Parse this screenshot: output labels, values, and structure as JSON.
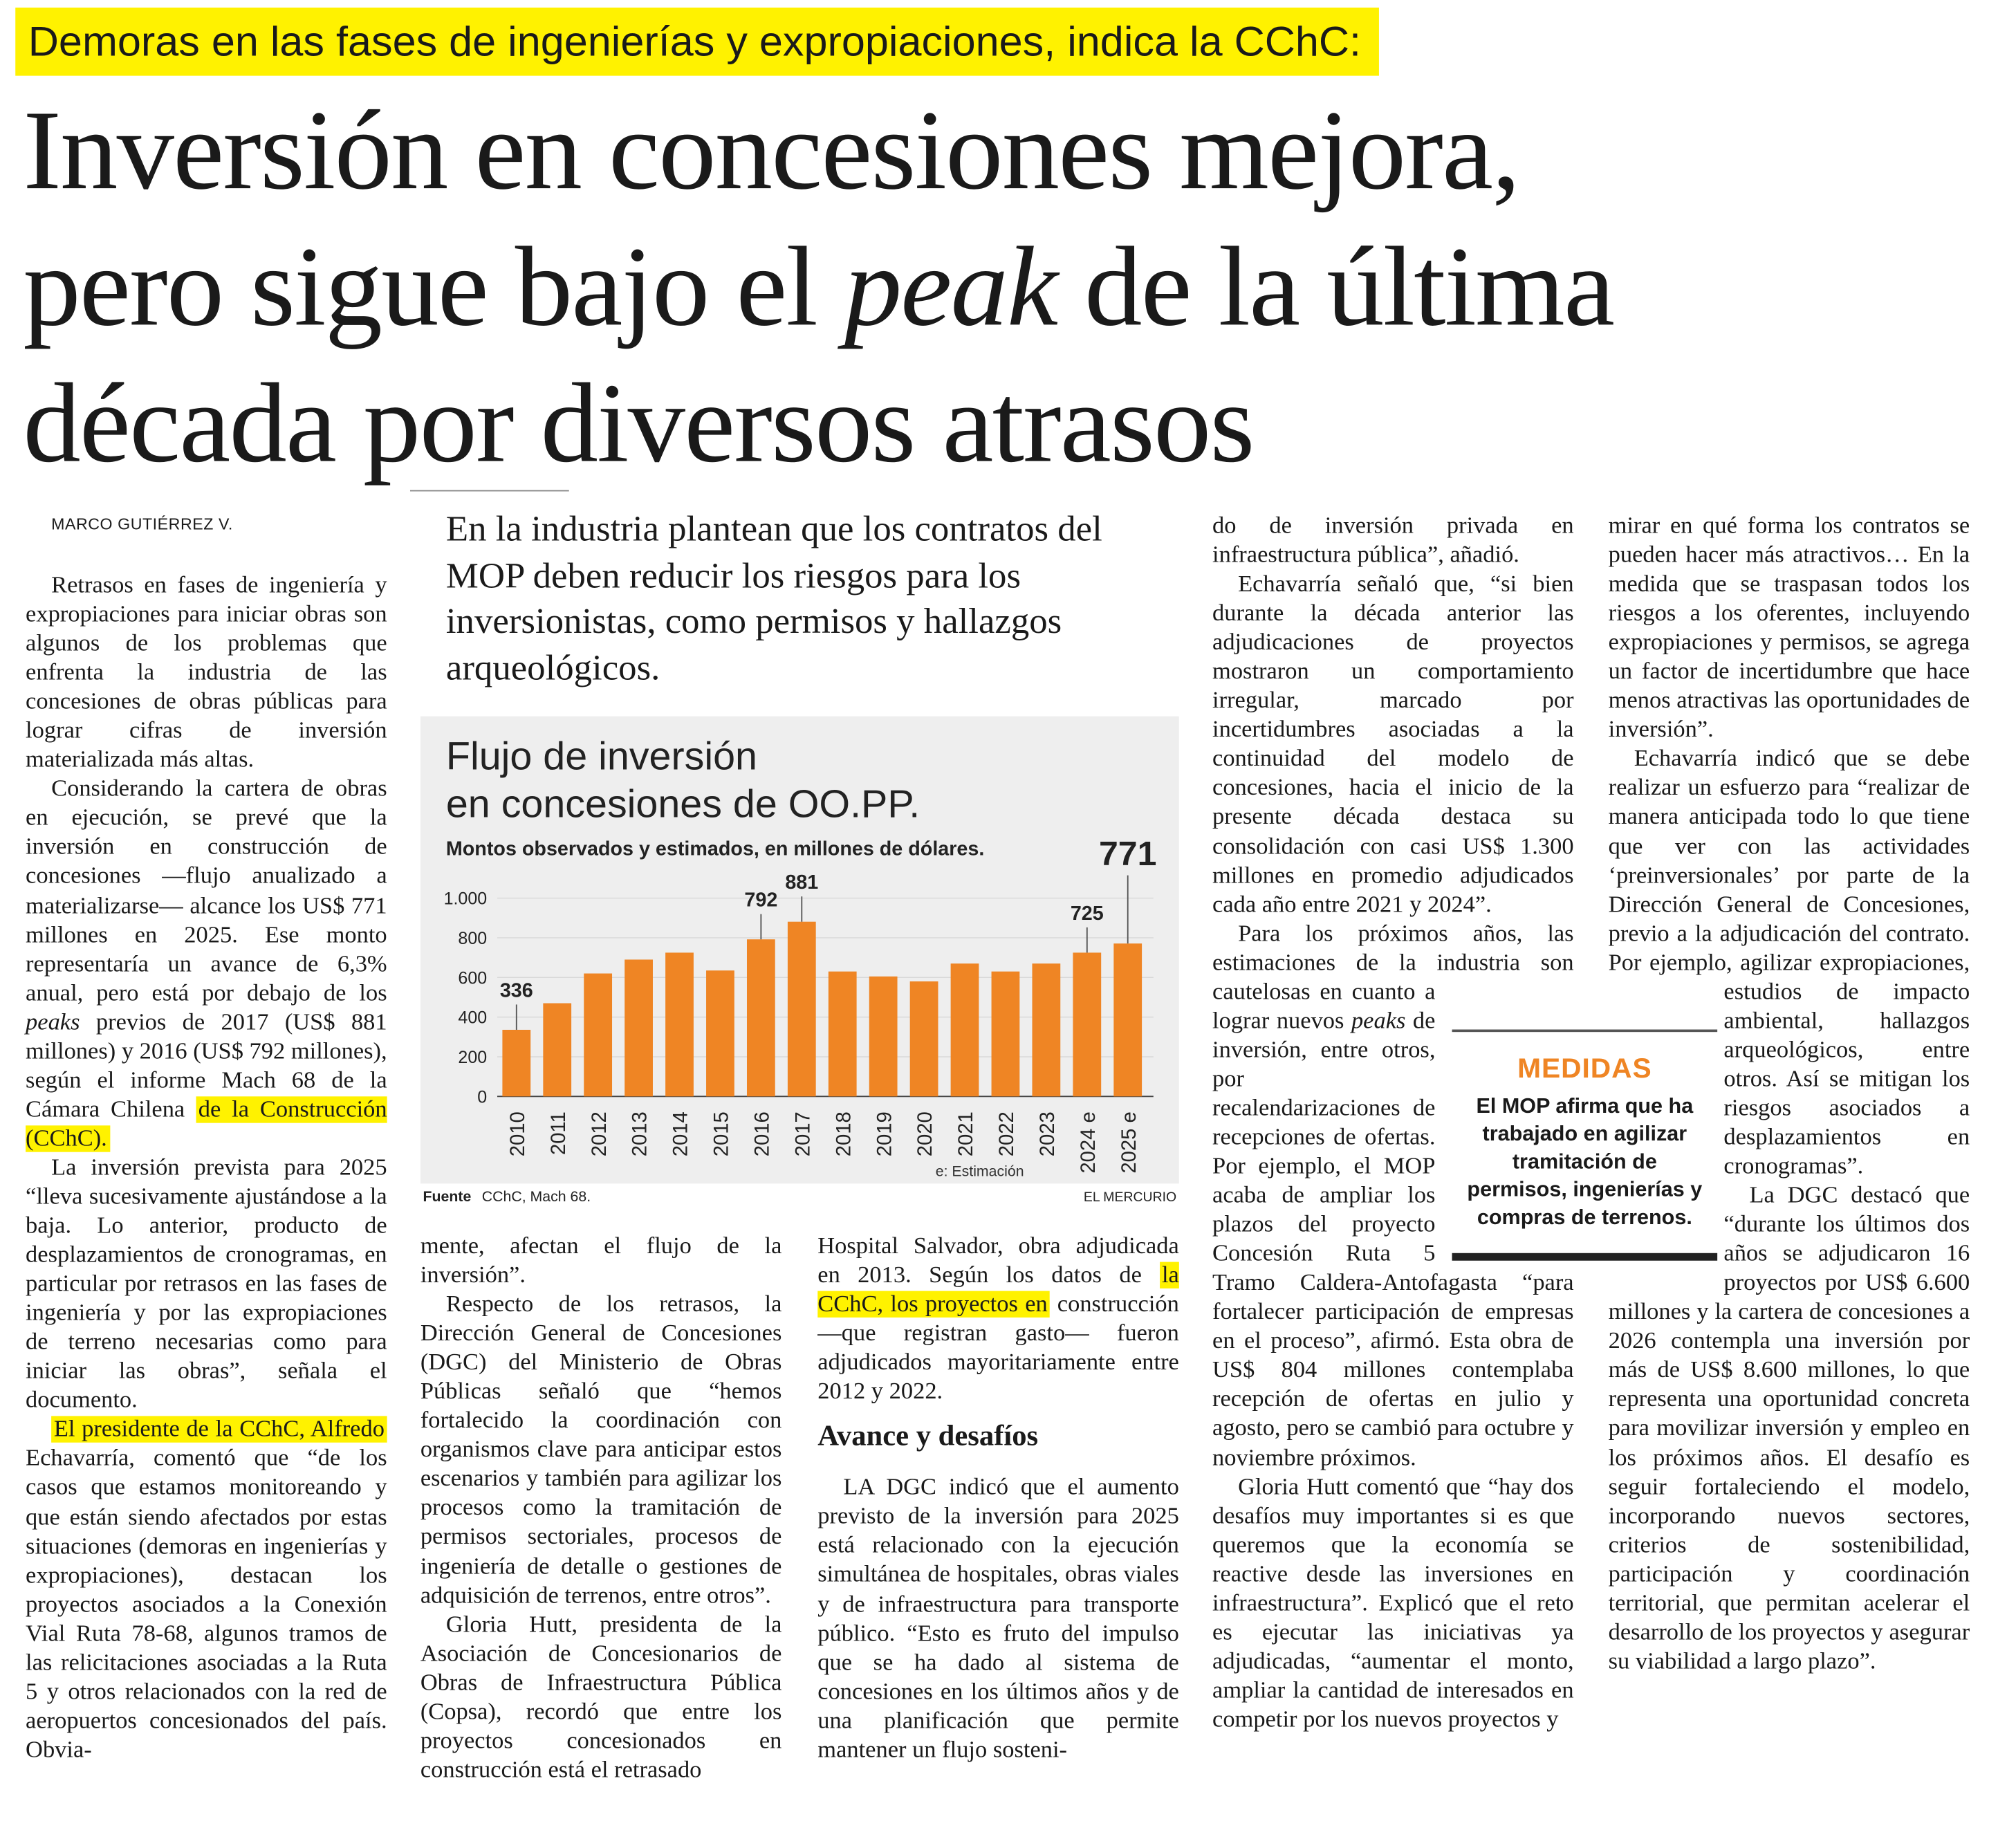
{
  "kicker": "Demoras en las fases de ingenierías y expropiaciones, indica la CChC:",
  "headline": [
    "Inversión en concesiones mejora,",
    [
      "pero sigue bajo el ",
      {
        "em": "peak"
      },
      " de la última"
    ],
    "década por diversos atrasos"
  ],
  "byline": "MARCO GUTIÉRREZ V.",
  "deck": "En la industria plantean que los contratos del MOP deben reducir los riesgos para los inversionistas, como permisos y hallazgos arqueológicos.",
  "columns": [
    [
      {
        "p": [
          "Retrasos en fases de ingeniería y expropiaciones para iniciar obras son algunos de los problemas que enfrenta la industria de las concesiones de obras públicas para lograr cifras de inversión materializada más altas."
        ]
      },
      {
        "p": [
          "Considerando la cartera de obras en ejecución, se prevé que la inversión en construcción de concesiones —flujo anualizado a materializarse— alcance los US$ 771 millones en 2025. Ese monto representaría un avance de 6,3% anual, pero está por debajo de los ",
          {
            "em": "peaks"
          },
          " previos de 2017 (US$ 881 millones) y 2016 (US$ 792 millones), según el informe Mach 68 de la Cámara Chilena ",
          {
            "mark": "de la Construcción (CChC)."
          }
        ]
      },
      {
        "p": [
          "La inversión prevista para 2025 “lleva sucesivamente ajustándose a la baja. Lo anterior, producto de desplazamientos de cronogramas, en particular por retrasos en las fases de ingeniería y por las expropiaciones de terreno necesarias como para iniciar las obras”, señala el documento."
        ]
      },
      {
        "p": [
          {
            "mark": "El presidente de la CChC, Alfredo"
          },
          " Echavarría, comentó que “de los casos que estamos monitoreando y que están siendo afectados por estas situaciones (demoras en ingenierías y expropiaciones), destacan los proyectos asociados a la Conexión Vial Ruta 78-68, algunos tramos de las relicitaciones asociadas a la Ruta 5 y otros relacionados con la red de aeropuertos concesionados del país. Obvia-"
        ]
      }
    ],
    [
      {
        "c": [
          "mente, afectan el flujo de la inversión”."
        ]
      },
      {
        "p": [
          "Respecto de los retrasos, la Dirección General de Concesiones (DGC) del Ministerio de Obras Públicas señaló que “hemos fortalecido la coordinación con organismos clave para anticipar estos escenarios y también para agilizar los procesos como la tramitación de permisos sectoriales, procesos de ingeniería de detalle o gestiones de adquisición de terrenos, entre otros”."
        ]
      },
      {
        "p": [
          "Gloria Hutt, presidenta de la Asociación de Concesionarios de Obras de Infraestructura Pública (Copsa), recordó que entre los proyectos concesionados en construcción está el retrasado"
        ]
      }
    ],
    [
      {
        "c": [
          "Hospital Salvador, obra adjudicada en 2013. Según los datos de ",
          {
            "mark": "la CChC, los proyectos en"
          },
          " construcción —que registran gasto— fueron adjudicados mayoritariamente entre 2012 y 2022."
        ]
      },
      {
        "h": "Avance y desafíos"
      },
      {
        "p": [
          "LA DGC indicó que el aumento previsto de la inversión para 2025 está relacionado con la ejecución simultánea de hospitales, obras viales y de infraestructura para transporte público. “Esto es fruto del impulso que se ha dado al sistema de concesiones en los últimos años y de una planificación que permite mantener un flujo sosteni-"
        ]
      }
    ],
    [
      {
        "c": [
          "do de inversión privada en infraestructura pública”, añadió."
        ]
      },
      {
        "p": [
          "Echavarría señaló que, “si bien durante la década anterior las adjudicaciones de proyectos mostraron un comportamiento irregular, marcado por incertidumbres asociadas a la continuidad del modelo de concesiones, hacia el inicio de la presente década destaca su consolidación con casi US$ 1.300 millones en promedio adjudicados cada año entre 2021 y 2024”."
        ]
      },
      {
        "p": [
          "Para los próximos años, las estimaciones de la industria son cautelosas en cuanto a lograr nuevos ",
          {
            "em": "peaks"
          },
          " de inversión, entre otros, por recalendarizaciones de recepciones de ofertas. Por ejemplo, el MOP acaba de ampliar los plazos del proyecto Concesión Ruta 5 Tramo Caldera-Antofagasta “para fortalecer participación de empresas en el proceso”, afirmó. Esta obra de US$ 804 millones contemplaba recepción de ofertas en julio y agosto, pero se cambió para octubre y noviembre próximos."
        ]
      },
      {
        "p": [
          "Gloria Hutt comentó que “hay dos desafíos muy importantes si es que queremos que la economía se reactive desde las inversiones en infraestructura”. Explicó que el reto es ejecutar las iniciativas ya adjudicadas, “aumentar el monto, ampliar la cantidad de interesados en competir por los nuevos proyectos y"
        ]
      }
    ],
    [
      {
        "c": [
          "mirar en qué forma los contratos se pueden hacer más atractivos… En la medida que se traspasan todos los riesgos a los oferentes, incluyendo expropiaciones y permisos, se agrega un factor de incertidumbre que hace menos atractivas las oportunidades de inversión”."
        ]
      },
      {
        "p": [
          "Echavarría indicó que se debe realizar un esfuerzo para “realizar de manera anticipada todo lo que tiene que ver con las actividades ‘preinversionales’ por parte de la Dirección General de Concesiones, previo a la adjudicación del contrato. Por ejemplo, agilizar expropiaciones, estudios de impacto ambiental, hallazgos arqueológicos, entre otros. Así se mitigan los riesgos asociados a desplazamientos en cronogramas”."
        ]
      },
      {
        "p": [
          "La DGC destacó que “durante los últimos dos años se adjudicaron 16 proyectos por US$ 6.600 millones y la cartera de concesiones a 2026 contempla una inversión por más de US$ 8.600 millones, lo que representa una oportunidad concreta para movilizar inversión y empleo en los próximos años. El desafío es seguir fortaleciendo el modelo, incorporando nuevos sectores, criterios de sostenibilidad, participación y coordinación territorial, que permitan acelerar el desarrollo de los proyectos y asegurar su viabilidad a largo plazo”."
        ]
      }
    ]
  ],
  "box": {
    "title": "MEDIDAS",
    "text": "El MOP afirma que ha trabajado en agilizar tramitación de permisos, ingenierías y compras de terrenos."
  },
  "chart_data": {
    "type": "bar",
    "title": "Flujo de inversión en concesiones de OO.PP.",
    "subtitle": "Montos observados y estimados, en millones de dólares.",
    "categories": [
      "2010",
      "2011",
      "2012",
      "2013",
      "2014",
      "2015",
      "2016",
      "2017",
      "2018",
      "2019",
      "2020",
      "2021",
      "2022",
      "2023",
      "2024 e",
      "2025 e"
    ],
    "values": [
      336,
      470,
      620,
      690,
      725,
      635,
      792,
      881,
      630,
      605,
      580,
      670,
      630,
      670,
      725,
      771
    ],
    "value_labels": [
      336,
      null,
      null,
      null,
      null,
      null,
      792,
      881,
      null,
      null,
      null,
      null,
      null,
      null,
      725,
      771
    ],
    "color": "#ef8524",
    "ylim": [
      0,
      1000
    ],
    "yticks": [
      0,
      200,
      400,
      600,
      800,
      {
        "value": 1000,
        "label": "1.000"
      }
    ],
    "note": "e: Estimación",
    "source_label": "Fuente",
    "source": "CChC, Mach 68.",
    "credit": "EL MERCURIO"
  }
}
